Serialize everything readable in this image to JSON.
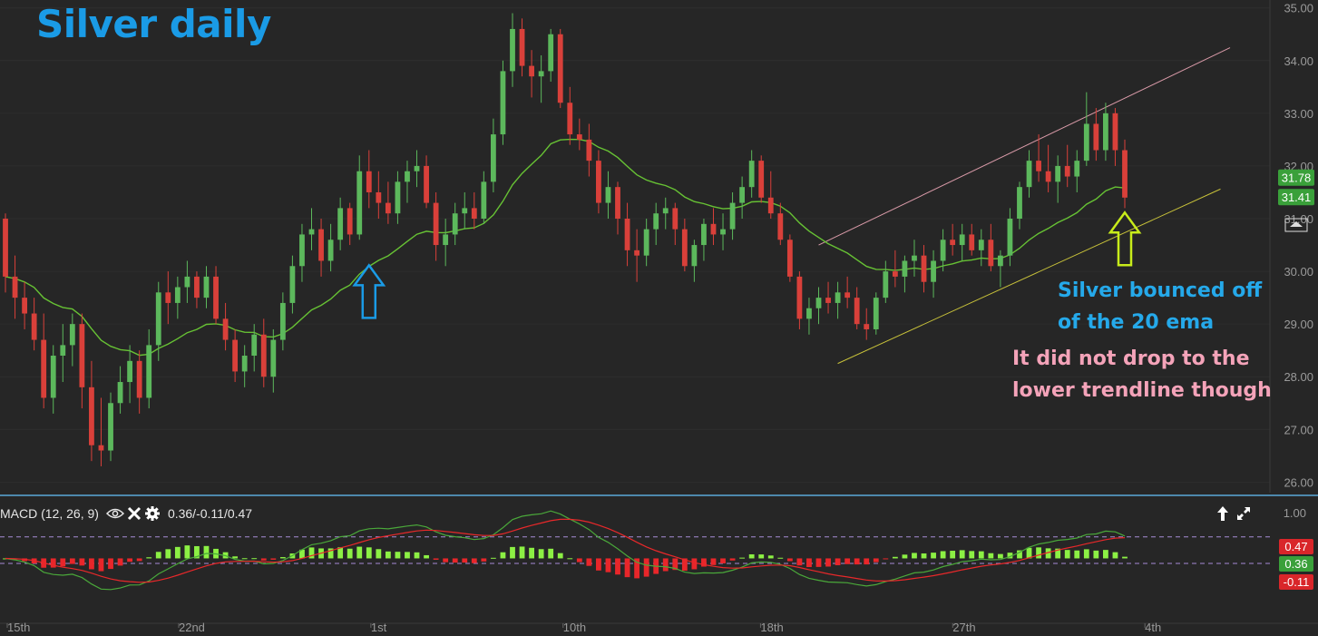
{
  "title": "Silver daily",
  "annotations": {
    "blue_lines": [
      "Silver bounced off",
      "of the 20 ema"
    ],
    "pink_lines": [
      "It did not drop to the",
      "lower trendline though"
    ]
  },
  "macd": {
    "label": "MACD (12, 26, 9)",
    "values_text": "0.36/-0.11/0.47",
    "badges": [
      "0.47",
      "0.36",
      "-0.11"
    ],
    "axis_labels": [
      "1.00"
    ]
  },
  "price_badges": [
    "31.78",
    "31.41"
  ],
  "colors": {
    "up": "#5cb85c",
    "down": "#d9403a",
    "ema": "#67c234",
    "upper_trendline": "#d99aa8",
    "lower_trendline": "#c8c23a",
    "macd_line": "#e8282a",
    "signal_line": "#4aa83a",
    "hist_pos": "#8cf044",
    "hist_neg": "#e8262a",
    "title": "#1a9be6",
    "blue_arrow": "#1a9be6",
    "yellow_arrow": "#c8ec1a"
  },
  "chart_data": [
    {
      "type": "candlestick",
      "title": "Silver daily",
      "y_axis_labels": [
        "26.00",
        "27.00",
        "28.00",
        "29.00",
        "30.00",
        "31.00",
        "32.00",
        "33.00",
        "34.00",
        "35.00"
      ],
      "ylim": [
        25.8,
        35.15
      ],
      "x_labels": [
        "15th",
        "22nd",
        "1st",
        "10th",
        "18th",
        "27th",
        "4th"
      ],
      "last_price": 31.41,
      "ema_value": 31.78,
      "ema_label": "20 ema",
      "ohlc": [
        [
          31.0,
          31.1,
          29.6,
          29.9
        ],
        [
          29.9,
          30.3,
          29.1,
          29.5
        ],
        [
          29.5,
          29.8,
          28.9,
          29.2
        ],
        [
          29.2,
          29.5,
          28.5,
          28.7
        ],
        [
          28.7,
          29.2,
          27.4,
          27.6
        ],
        [
          27.6,
          28.6,
          27.3,
          28.4
        ],
        [
          28.4,
          29.0,
          27.9,
          28.6
        ],
        [
          28.6,
          29.2,
          28.2,
          29.0
        ],
        [
          29.0,
          29.2,
          27.4,
          27.8
        ],
        [
          27.8,
          28.3,
          26.4,
          26.7
        ],
        [
          26.7,
          27.6,
          26.3,
          26.6
        ],
        [
          26.6,
          27.7,
          26.4,
          27.5
        ],
        [
          27.5,
          28.2,
          27.3,
          27.9
        ],
        [
          27.9,
          28.6,
          27.5,
          28.3
        ],
        [
          28.3,
          28.5,
          27.3,
          27.6
        ],
        [
          27.6,
          28.9,
          27.4,
          28.6
        ],
        [
          28.6,
          29.8,
          28.3,
          29.6
        ],
        [
          29.6,
          30.0,
          29.0,
          29.4
        ],
        [
          29.4,
          29.9,
          29.1,
          29.7
        ],
        [
          29.7,
          30.2,
          29.4,
          29.9
        ],
        [
          29.9,
          30.0,
          29.3,
          29.5
        ],
        [
          29.5,
          30.1,
          29.3,
          29.9
        ],
        [
          29.9,
          30.1,
          29.0,
          29.1
        ],
        [
          29.1,
          29.4,
          28.5,
          28.7
        ],
        [
          28.7,
          28.9,
          27.9,
          28.1
        ],
        [
          28.1,
          28.6,
          27.8,
          28.4
        ],
        [
          28.4,
          29.0,
          28.1,
          28.8
        ],
        [
          28.8,
          29.1,
          27.8,
          28.0
        ],
        [
          28.0,
          28.9,
          27.7,
          28.7
        ],
        [
          28.7,
          29.6,
          28.5,
          29.4
        ],
        [
          29.4,
          30.3,
          29.2,
          30.1
        ],
        [
          30.1,
          30.9,
          29.8,
          30.7
        ],
        [
          30.7,
          31.2,
          30.4,
          30.8
        ],
        [
          30.8,
          31.0,
          29.9,
          30.2
        ],
        [
          30.2,
          30.9,
          30.0,
          30.6
        ],
        [
          30.6,
          31.4,
          30.4,
          31.2
        ],
        [
          31.2,
          31.3,
          30.5,
          30.7
        ],
        [
          30.7,
          32.2,
          30.6,
          31.9
        ],
        [
          31.9,
          32.3,
          31.2,
          31.5
        ],
        [
          31.5,
          31.9,
          31.0,
          31.3
        ],
        [
          31.3,
          31.7,
          30.9,
          31.1
        ],
        [
          31.1,
          31.9,
          30.9,
          31.7
        ],
        [
          31.7,
          32.1,
          31.3,
          31.9
        ],
        [
          31.9,
          32.3,
          31.6,
          32.0
        ],
        [
          32.0,
          32.2,
          31.2,
          31.3
        ],
        [
          31.3,
          31.5,
          30.2,
          30.5
        ],
        [
          30.5,
          31.0,
          30.1,
          30.7
        ],
        [
          30.7,
          31.3,
          30.5,
          31.1
        ],
        [
          31.1,
          31.5,
          30.8,
          31.2
        ],
        [
          31.2,
          31.5,
          30.8,
          31.0
        ],
        [
          31.0,
          31.9,
          30.9,
          31.7
        ],
        [
          31.7,
          32.9,
          31.5,
          32.6
        ],
        [
          32.6,
          34.0,
          32.4,
          33.8
        ],
        [
          33.8,
          34.9,
          33.5,
          34.6
        ],
        [
          34.6,
          34.8,
          33.7,
          33.9
        ],
        [
          33.9,
          34.2,
          33.3,
          33.7
        ],
        [
          33.7,
          34.1,
          33.2,
          33.8
        ],
        [
          33.8,
          34.6,
          33.6,
          34.5
        ],
        [
          34.5,
          34.6,
          33.1,
          33.2
        ],
        [
          33.2,
          33.5,
          32.4,
          32.6
        ],
        [
          32.6,
          32.9,
          32.3,
          32.5
        ],
        [
          32.5,
          32.8,
          31.8,
          32.1
        ],
        [
          32.1,
          32.3,
          31.1,
          31.3
        ],
        [
          31.3,
          31.9,
          31.0,
          31.6
        ],
        [
          31.6,
          31.7,
          30.7,
          31.0
        ],
        [
          31.0,
          31.3,
          30.1,
          30.4
        ],
        [
          30.4,
          30.8,
          29.8,
          30.3
        ],
        [
          30.3,
          31.0,
          30.1,
          30.8
        ],
        [
          30.8,
          31.3,
          30.5,
          31.1
        ],
        [
          31.1,
          31.4,
          30.8,
          31.2
        ],
        [
          31.2,
          31.3,
          30.5,
          30.8
        ],
        [
          30.8,
          31.0,
          30.0,
          30.1
        ],
        [
          30.1,
          30.6,
          29.8,
          30.5
        ],
        [
          30.5,
          31.0,
          30.2,
          30.9
        ],
        [
          30.9,
          31.2,
          30.5,
          30.7
        ],
        [
          30.7,
          31.1,
          30.4,
          30.8
        ],
        [
          30.8,
          31.5,
          30.6,
          31.3
        ],
        [
          31.3,
          31.8,
          31.0,
          31.6
        ],
        [
          31.6,
          32.3,
          31.4,
          32.1
        ],
        [
          32.1,
          32.2,
          31.3,
          31.4
        ],
        [
          31.4,
          31.9,
          31.0,
          31.1
        ],
        [
          31.1,
          31.3,
          30.5,
          30.6
        ],
        [
          30.6,
          30.7,
          29.8,
          29.9
        ],
        [
          29.9,
          30.0,
          28.9,
          29.1
        ],
        [
          29.1,
          29.5,
          28.8,
          29.3
        ],
        [
          29.3,
          29.7,
          29.0,
          29.5
        ],
        [
          29.5,
          29.8,
          29.2,
          29.4
        ],
        [
          29.4,
          29.8,
          29.1,
          29.6
        ],
        [
          29.6,
          29.9,
          29.3,
          29.5
        ],
        [
          29.5,
          29.7,
          28.9,
          29.0
        ],
        [
          29.0,
          29.3,
          28.7,
          28.9
        ],
        [
          28.9,
          29.6,
          28.8,
          29.5
        ],
        [
          29.5,
          30.2,
          29.4,
          30.0
        ],
        [
          30.0,
          30.4,
          29.7,
          29.9
        ],
        [
          29.9,
          30.3,
          29.6,
          30.2
        ],
        [
          30.2,
          30.6,
          29.9,
          30.3
        ],
        [
          30.3,
          30.5,
          29.6,
          29.8
        ],
        [
          29.8,
          30.4,
          29.5,
          30.2
        ],
        [
          30.2,
          30.8,
          30.0,
          30.6
        ],
        [
          30.6,
          30.9,
          30.3,
          30.5
        ],
        [
          30.5,
          30.9,
          30.2,
          30.7
        ],
        [
          30.7,
          30.9,
          30.3,
          30.4
        ],
        [
          30.4,
          30.8,
          30.1,
          30.6
        ],
        [
          30.6,
          30.9,
          30.0,
          30.1
        ],
        [
          30.1,
          30.4,
          29.7,
          30.3
        ],
        [
          30.3,
          31.2,
          30.1,
          31.0
        ],
        [
          31.0,
          31.7,
          30.8,
          31.6
        ],
        [
          31.6,
          32.3,
          31.4,
          32.1
        ],
        [
          32.1,
          32.6,
          31.7,
          31.9
        ],
        [
          31.9,
          32.4,
          31.5,
          31.7
        ],
        [
          31.7,
          32.2,
          31.3,
          32.0
        ],
        [
          32.0,
          32.4,
          31.6,
          31.8
        ],
        [
          31.8,
          32.3,
          31.5,
          32.1
        ],
        [
          32.1,
          33.4,
          32.0,
          32.8
        ],
        [
          32.8,
          33.1,
          32.1,
          32.3
        ],
        [
          32.3,
          33.2,
          32.1,
          33.0
        ],
        [
          33.0,
          33.1,
          32.0,
          32.3
        ],
        [
          32.3,
          32.5,
          31.2,
          31.4
        ]
      ]
    },
    {
      "type": "macd",
      "params": "12, 26, 9",
      "macd": 0.36,
      "signal": -0.11,
      "histogram": 0.47,
      "ylim": [
        -1.4,
        1.2
      ],
      "reference_levels": [
        0.47,
        -0.11
      ]
    }
  ]
}
